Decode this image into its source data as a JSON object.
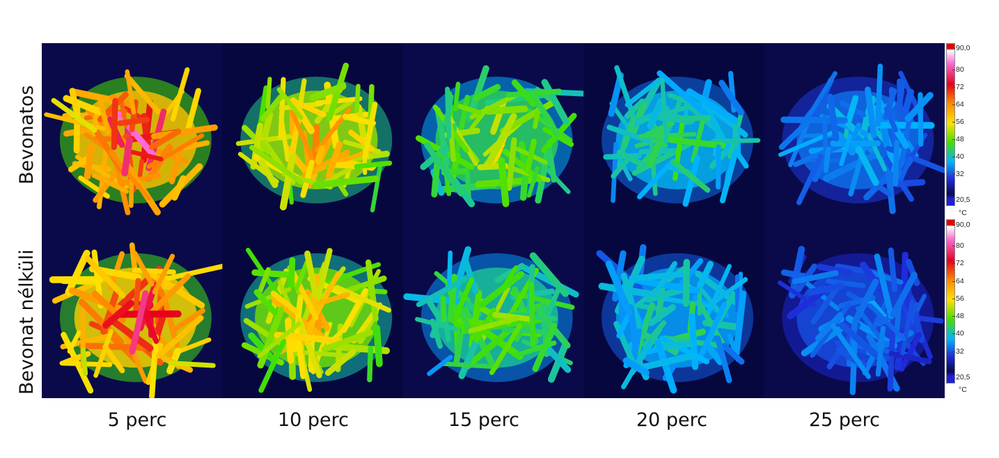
{
  "rows": {
    "top_label": "Bevonatos",
    "bottom_label": "Bevonat nélküli"
  },
  "time_labels": [
    "5 perc",
    "10 perc",
    "15 perc",
    "20 perc",
    "25 perc"
  ],
  "color_scale": {
    "unit": "°C",
    "ticks": [
      "90,0",
      "80",
      "72",
      "64",
      "56",
      "48",
      "40",
      "32",
      "20,5"
    ],
    "min": 20.5,
    "max": 90.0,
    "colors": [
      "#ffffff",
      "#ff6ad5",
      "#e6001e",
      "#ff8a00",
      "#ffe100",
      "#43e000",
      "#00b4ff",
      "#1e2ad8",
      "#0a0a50"
    ]
  },
  "panels_relative_heat": [
    [
      0.95,
      0.78,
      0.62,
      0.48,
      0.36
    ],
    [
      0.92,
      0.74,
      0.56,
      0.44,
      0.3
    ]
  ]
}
